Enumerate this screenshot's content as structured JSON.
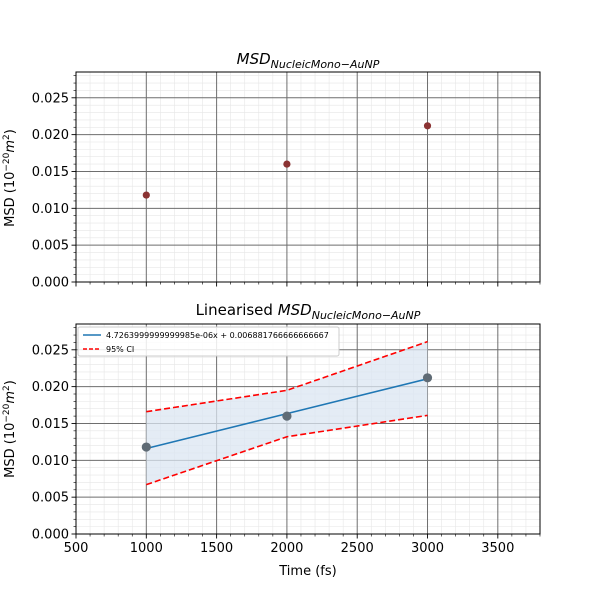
{
  "chart_data": [
    {
      "type": "scatter",
      "title_base": "MSD",
      "title_sub": "NucleicMono−AuNP",
      "ylabel": "MSD (10",
      "ylabel_exp": "−20",
      "ylabel_unit": "m",
      "ylabel_unit_exp": "2",
      "ylabel_close": ")",
      "xlim": [
        500,
        3800
      ],
      "ylim": [
        0,
        0.0285
      ],
      "yticks": [
        "0.000",
        "0.005",
        "0.010",
        "0.015",
        "0.020",
        "0.025"
      ],
      "grid": true,
      "point_color": "#8b3333",
      "series": [
        {
          "x": [
            1000,
            2000,
            3000
          ],
          "y": [
            0.0118,
            0.016,
            0.0212
          ]
        }
      ]
    },
    {
      "type": "line",
      "title_prefix": "Linearised ",
      "title_base": "MSD",
      "title_sub": "NucleicMono−AuNP",
      "xlabel": "Time (fs)",
      "ylabel": "MSD (10",
      "ylabel_exp": "−20",
      "ylabel_unit": "m",
      "ylabel_unit_exp": "2",
      "ylabel_close": ")",
      "xlim": [
        500,
        3800
      ],
      "ylim": [
        0,
        0.0285
      ],
      "xticks": [
        "500",
        "1000",
        "1500",
        "2000",
        "2500",
        "3000",
        "3500"
      ],
      "yticks": [
        "0.000",
        "0.005",
        "0.010",
        "0.015",
        "0.020",
        "0.025"
      ],
      "grid": true,
      "legend_position": "upper-left",
      "points": {
        "x": [
          1000,
          2000,
          3000
        ],
        "y": [
          0.0118,
          0.016,
          0.0212
        ],
        "color": "#5f6b75"
      },
      "fit": {
        "name": "4.7263999999999985e-06x + 0.006881766666666667",
        "x": [
          1000,
          2000,
          3000
        ],
        "y": [
          0.011608,
          0.016335,
          0.021061
        ],
        "color": "#1f77b4"
      },
      "ci_upper": {
        "name": "95% CI",
        "x": [
          1000,
          2000,
          3000
        ],
        "y": [
          0.0166,
          0.0195,
          0.0261
        ],
        "color": "#ff0000"
      },
      "ci_lower": {
        "x": [
          1000,
          2000,
          3000
        ],
        "y": [
          0.0067,
          0.0132,
          0.0161
        ],
        "color": "#ff0000"
      },
      "band_color": "#dbe6f2"
    }
  ]
}
